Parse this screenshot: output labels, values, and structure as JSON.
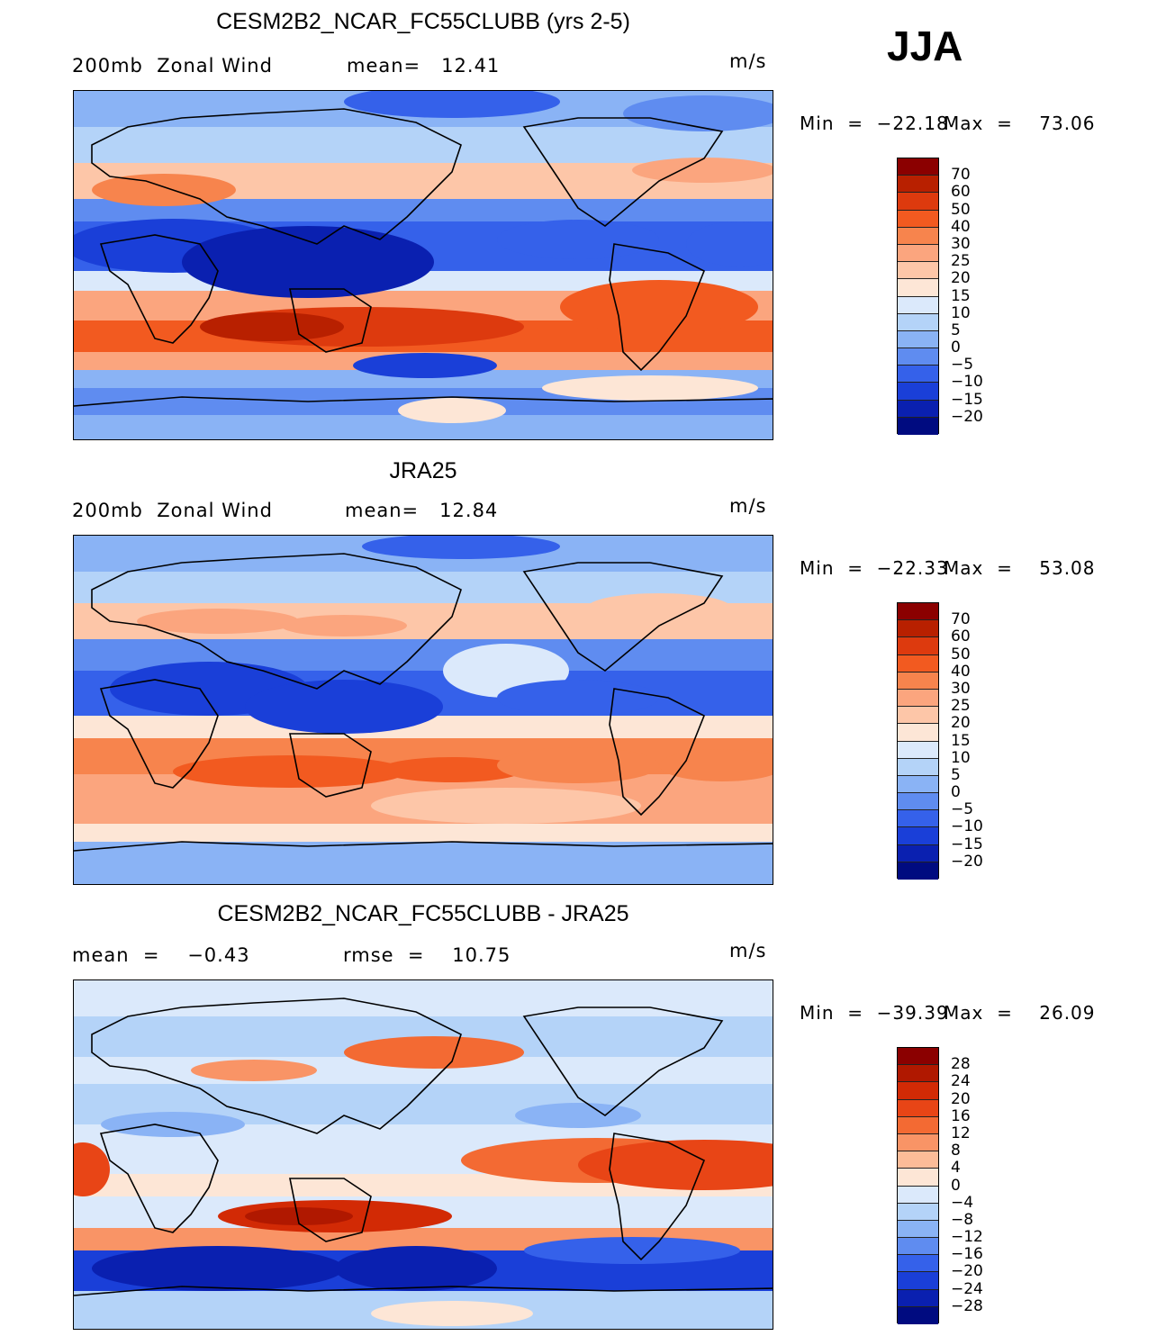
{
  "season": "JJA",
  "panels": [
    {
      "title": "CESM2B2_NCAR_FC55CLUBB (yrs 2-5)",
      "left_label": "200mb  Zonal Wind",
      "mid_label": "mean=   12.41",
      "units": "m/s",
      "min_text": "Min  =  −22.18",
      "max_text": "Max  =    73.06",
      "colorbar": [
        "70",
        "60",
        "50",
        "40",
        "30",
        "25",
        "20",
        "15",
        "10",
        "5",
        "0",
        "−5",
        "−10",
        "−15",
        "−20"
      ],
      "colors": [
        "#8b0000",
        "#b82000",
        "#dd3a0e",
        "#f25a20",
        "#f7844d",
        "#fba57e",
        "#fdc6a8",
        "#fde6d6",
        "#dbe9fb",
        "#b4d3f8",
        "#8ab3f5",
        "#5f8cf0",
        "#3561ea",
        "#1a3fd8",
        "#0a20b0",
        "#000b80"
      ],
      "pattern": "model"
    },
    {
      "title": "JRA25",
      "left_label": "200mb  Zonal Wind",
      "mid_label": "mean=   12.84",
      "units": "m/s",
      "min_text": "Min  =  −22.33",
      "max_text": "Max  =    53.08",
      "colorbar": [
        "70",
        "60",
        "50",
        "40",
        "30",
        "25",
        "20",
        "15",
        "10",
        "5",
        "0",
        "−5",
        "−10",
        "−15",
        "−20"
      ],
      "colors": [
        "#8b0000",
        "#b82000",
        "#dd3a0e",
        "#f25a20",
        "#f7844d",
        "#fba57e",
        "#fdc6a8",
        "#fde6d6",
        "#dbe9fb",
        "#b4d3f8",
        "#8ab3f5",
        "#5f8cf0",
        "#3561ea",
        "#1a3fd8",
        "#0a20b0",
        "#000b80"
      ],
      "pattern": "obs"
    },
    {
      "title": "CESM2B2_NCAR_FC55CLUBB - JRA25",
      "left_label": "mean  =    −0.43",
      "mid_label": "rmse  =    10.75",
      "units": "m/s",
      "min_text": "Min  =  −39.39",
      "max_text": "Max  =    26.09",
      "colorbar": [
        "28",
        "24",
        "20",
        "16",
        "12",
        "8",
        "4",
        "0",
        "−4",
        "−8",
        "−12",
        "−16",
        "−20",
        "−24",
        "−28"
      ],
      "colors": [
        "#8b0000",
        "#b01800",
        "#d22a05",
        "#e84516",
        "#f36a33",
        "#f99466",
        "#fcbc98",
        "#fde6d6",
        "#dbe9fb",
        "#b4d3f8",
        "#8ab3f5",
        "#5f8cf0",
        "#3561ea",
        "#1a3fd8",
        "#0a20b0",
        "#000b80"
      ],
      "pattern": "diff"
    }
  ]
}
